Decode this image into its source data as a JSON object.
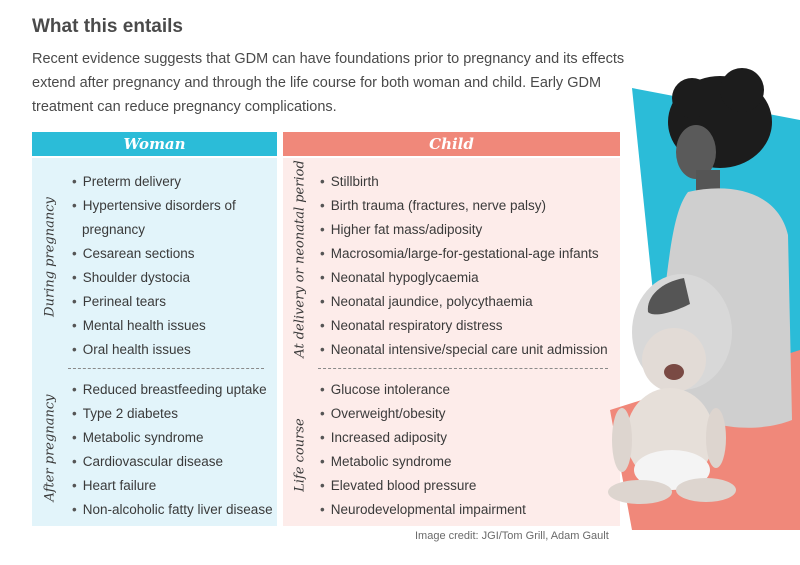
{
  "heading": "What this entails",
  "intro": "Recent evidence suggests that GDM can have foundations prior to pregnancy and its effects extend after pregnancy and through the life course for both woman and child. Early GDM treatment can reduce pregnancy complications.",
  "woman": {
    "header": "Woman",
    "during": {
      "label": "During pregnancy",
      "items": [
        "Preterm delivery",
        "Hypertensive disorders of pregnancy",
        "Cesarean sections",
        "Shoulder dystocia",
        "Perineal tears",
        "Mental health issues",
        "Oral health issues"
      ]
    },
    "after": {
      "label": "After pregnancy",
      "items": [
        "Reduced breastfeeding uptake",
        "Type 2 diabetes",
        "Metabolic syndrome",
        "Cardiovascular disease",
        "Heart failure",
        "Non-alcoholic fatty liver disease"
      ]
    }
  },
  "child": {
    "header": "Child",
    "delivery": {
      "label": "At delivery or neonatal period",
      "items": [
        "Stillbirth",
        "Birth trauma (fractures, nerve palsy)",
        "Higher fat mass/adiposity",
        "Macrosomia/large-for-gestational-age infants",
        "Neonatal hypoglycaemia",
        "Neonatal jaundice, polycythaemia",
        "Neonatal respiratory distress",
        "Neonatal intensive/special care unit admission"
      ]
    },
    "life": {
      "label": "Life course",
      "items": [
        "Glucose intolerance",
        "Overweight/obesity",
        "Increased adiposity",
        "Metabolic syndrome",
        "Elevated blood pressure",
        "Neurodevelopmental impairment"
      ]
    }
  },
  "credit": "Image credit: JGI/Tom Grill, Adam Gault",
  "colors": {
    "woman_accent": "#2bbcd8",
    "woman_panel": "#e2f4fa",
    "child_accent": "#f0887a",
    "child_panel": "#fdecea"
  }
}
